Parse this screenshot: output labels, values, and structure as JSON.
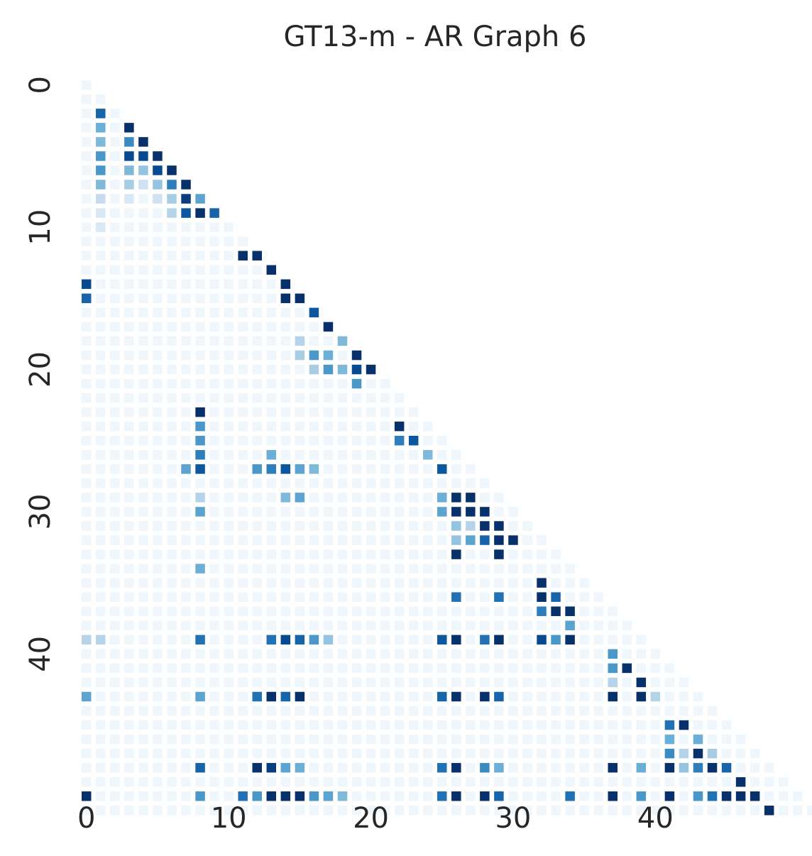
{
  "chart_data": {
    "type": "heatmap",
    "title": "GT13-m - AR Graph 6",
    "size": 49,
    "mask": "lower-triangle-including-diagonal",
    "colormap": "Blues",
    "value_range": [
      0,
      1
    ],
    "colorbar": false,
    "x_ticks": [
      0,
      10,
      20,
      30,
      40
    ],
    "y_ticks": [
      0,
      10,
      20,
      30,
      40
    ],
    "background_value": 0.04,
    "cells": [
      [
        2,
        1,
        0.8
      ],
      [
        3,
        1,
        0.5
      ],
      [
        4,
        1,
        0.45
      ],
      [
        5,
        1,
        0.6
      ],
      [
        6,
        1,
        0.6
      ],
      [
        7,
        1,
        0.45
      ],
      [
        8,
        1,
        0.25
      ],
      [
        9,
        1,
        0.15
      ],
      [
        10,
        1,
        0.15
      ],
      [
        3,
        3,
        1
      ],
      [
        4,
        3,
        0.65
      ],
      [
        5,
        3,
        0.9
      ],
      [
        6,
        3,
        0.45
      ],
      [
        7,
        3,
        0.35
      ],
      [
        8,
        3,
        0.15
      ],
      [
        4,
        4,
        1
      ],
      [
        5,
        4,
        0.9
      ],
      [
        6,
        4,
        0.4
      ],
      [
        7,
        4,
        0.2
      ],
      [
        5,
        5,
        1
      ],
      [
        6,
        5,
        0.9
      ],
      [
        7,
        5,
        0.4
      ],
      [
        8,
        5,
        0.2
      ],
      [
        6,
        6,
        1
      ],
      [
        7,
        6,
        0.7
      ],
      [
        8,
        6,
        0.35
      ],
      [
        9,
        6,
        0.3
      ],
      [
        7,
        7,
        1
      ],
      [
        8,
        7,
        0.95
      ],
      [
        9,
        7,
        0.85
      ],
      [
        8,
        8,
        0.55
      ],
      [
        9,
        8,
        1
      ],
      [
        9,
        9,
        0.8
      ],
      [
        12,
        11,
        1
      ],
      [
        12,
        12,
        1
      ],
      [
        13,
        13,
        1
      ],
      [
        14,
        14,
        1
      ],
      [
        15,
        14,
        1
      ],
      [
        15,
        15,
        1
      ],
      [
        16,
        16,
        0.85
      ],
      [
        17,
        17,
        1
      ],
      [
        18,
        18,
        0.45
      ],
      [
        19,
        19,
        1
      ],
      [
        20,
        20,
        1
      ],
      [
        14,
        0,
        0.9
      ],
      [
        15,
        0,
        0.8
      ],
      [
        23,
        8,
        1
      ],
      [
        24,
        8,
        0.6
      ],
      [
        25,
        8,
        0.6
      ],
      [
        26,
        8,
        0.7
      ],
      [
        27,
        8,
        0.85
      ],
      [
        29,
        8,
        0.3
      ],
      [
        30,
        8,
        0.55
      ],
      [
        34,
        8,
        0.5
      ],
      [
        20,
        16,
        0.35
      ],
      [
        20,
        17,
        0.6
      ],
      [
        20,
        18,
        0.45
      ],
      [
        20,
        19,
        0.9
      ],
      [
        21,
        19,
        0.6
      ],
      [
        19,
        16,
        0.6
      ],
      [
        19,
        17,
        0.5
      ],
      [
        19,
        15,
        0.35
      ],
      [
        18,
        15,
        0.3
      ],
      [
        24,
        22,
        1
      ],
      [
        25,
        22,
        0.7
      ],
      [
        25,
        23,
        0.85
      ],
      [
        26,
        24,
        0.45
      ],
      [
        27,
        25,
        0.85
      ],
      [
        27,
        12,
        0.6
      ],
      [
        27,
        13,
        0.7
      ],
      [
        27,
        14,
        0.85
      ],
      [
        27,
        15,
        0.55
      ],
      [
        27,
        16,
        0.45
      ],
      [
        27,
        7,
        0.55
      ],
      [
        26,
        13,
        0.5
      ],
      [
        29,
        14,
        0.45
      ],
      [
        29,
        15,
        0.55
      ],
      [
        29,
        25,
        0.5
      ],
      [
        29,
        26,
        1
      ],
      [
        29,
        27,
        1
      ],
      [
        30,
        25,
        0.55
      ],
      [
        30,
        26,
        1
      ],
      [
        30,
        27,
        1
      ],
      [
        30,
        28,
        1
      ],
      [
        31,
        26,
        0.4
      ],
      [
        31,
        27,
        0.3
      ],
      [
        31,
        28,
        1
      ],
      [
        31,
        29,
        1
      ],
      [
        32,
        26,
        0.4
      ],
      [
        32,
        27,
        0.55
      ],
      [
        32,
        28,
        0.8
      ],
      [
        32,
        29,
        1
      ],
      [
        32,
        30,
        1
      ],
      [
        33,
        26,
        1
      ],
      [
        33,
        29,
        1
      ],
      [
        35,
        32,
        1
      ],
      [
        36,
        26,
        0.75
      ],
      [
        36,
        29,
        0.75
      ],
      [
        36,
        32,
        1
      ],
      [
        36,
        33,
        0.8
      ],
      [
        37,
        32,
        0.7
      ],
      [
        37,
        33,
        1
      ],
      [
        37,
        34,
        1
      ],
      [
        38,
        34,
        0.55
      ],
      [
        39,
        0,
        0.3
      ],
      [
        39,
        1,
        0.3
      ],
      [
        39,
        8,
        0.75
      ],
      [
        39,
        13,
        0.75
      ],
      [
        39,
        14,
        0.9
      ],
      [
        39,
        15,
        0.8
      ],
      [
        39,
        16,
        0.6
      ],
      [
        39,
        17,
        0.4
      ],
      [
        39,
        25,
        0.85
      ],
      [
        39,
        26,
        1
      ],
      [
        39,
        28,
        0.75
      ],
      [
        39,
        29,
        1
      ],
      [
        39,
        32,
        0.9
      ],
      [
        39,
        33,
        0.6
      ],
      [
        39,
        34,
        1
      ],
      [
        40,
        37,
        0.6
      ],
      [
        41,
        37,
        0.6
      ],
      [
        41,
        38,
        1
      ],
      [
        42,
        37,
        0.3
      ],
      [
        42,
        39,
        1
      ],
      [
        43,
        37,
        1
      ],
      [
        43,
        39,
        1
      ],
      [
        43,
        40,
        0.3
      ],
      [
        43,
        0,
        0.55
      ],
      [
        43,
        8,
        0.55
      ],
      [
        43,
        12,
        0.75
      ],
      [
        43,
        13,
        1
      ],
      [
        43,
        14,
        0.8
      ],
      [
        43,
        15,
        1
      ],
      [
        43,
        25,
        0.8
      ],
      [
        43,
        26,
        1
      ],
      [
        43,
        28,
        1
      ],
      [
        43,
        29,
        0.8
      ],
      [
        45,
        41,
        0.75
      ],
      [
        45,
        42,
        1
      ],
      [
        46,
        41,
        0.5
      ],
      [
        46,
        43,
        0.5
      ],
      [
        47,
        41,
        0.65
      ],
      [
        47,
        42,
        0.3
      ],
      [
        47,
        43,
        1
      ],
      [
        47,
        44,
        0.35
      ],
      [
        48,
        8,
        0.8
      ],
      [
        48,
        12,
        1
      ],
      [
        48,
        13,
        0.95
      ],
      [
        48,
        14,
        0.55
      ],
      [
        48,
        15,
        0.5
      ],
      [
        48,
        25,
        0.75
      ],
      [
        48,
        26,
        1
      ],
      [
        48,
        28,
        0.65
      ],
      [
        48,
        29,
        0.5
      ],
      [
        48,
        37,
        1
      ],
      [
        48,
        39,
        0.5
      ],
      [
        48,
        41,
        1
      ],
      [
        48,
        42,
        0.4
      ],
      [
        48,
        43,
        0.7
      ],
      [
        48,
        44,
        1
      ],
      [
        48,
        45,
        0.8
      ],
      [
        49,
        46,
        1
      ],
      [
        50,
        0,
        1
      ],
      [
        50,
        8,
        0.6
      ],
      [
        50,
        11,
        0.75
      ],
      [
        50,
        12,
        0.6
      ],
      [
        50,
        13,
        1
      ],
      [
        50,
        14,
        1
      ],
      [
        50,
        15,
        1
      ],
      [
        50,
        16,
        0.6
      ],
      [
        50,
        17,
        0.55
      ],
      [
        50,
        18,
        0.45
      ],
      [
        50,
        25,
        0.75
      ],
      [
        50,
        26,
        1
      ],
      [
        50,
        28,
        1
      ],
      [
        50,
        29,
        0.8
      ],
      [
        50,
        34,
        0.75
      ],
      [
        50,
        37,
        1
      ],
      [
        50,
        39,
        0.6
      ],
      [
        50,
        41,
        1
      ],
      [
        50,
        43,
        0.6
      ],
      [
        50,
        44,
        0.75
      ],
      [
        50,
        45,
        1
      ],
      [
        50,
        46,
        1
      ],
      [
        50,
        47,
        1
      ],
      [
        51,
        48,
        1
      ]
    ]
  }
}
